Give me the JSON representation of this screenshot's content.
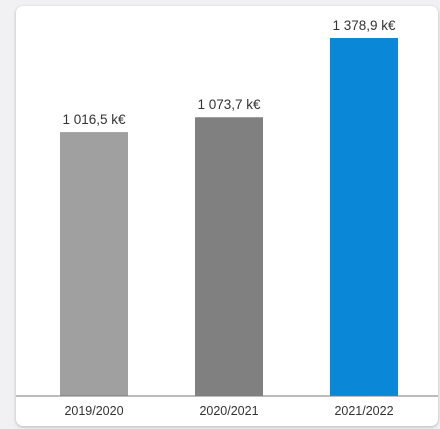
{
  "chart_data": {
    "type": "bar",
    "categories": [
      "2019/2020",
      "2020/2021",
      "2021/2022"
    ],
    "values": [
      1016.5,
      1073.7,
      1378.9
    ],
    "value_labels": [
      "1 016,5 k€",
      "1 073,7 k€",
      "1 378,9 k€"
    ],
    "colors": [
      "#a0a0a0",
      "#808080",
      "#0a87d6"
    ],
    "ylim": [
      0,
      1378.9
    ],
    "grid": false,
    "title": "",
    "xlabel": "",
    "ylabel": ""
  }
}
